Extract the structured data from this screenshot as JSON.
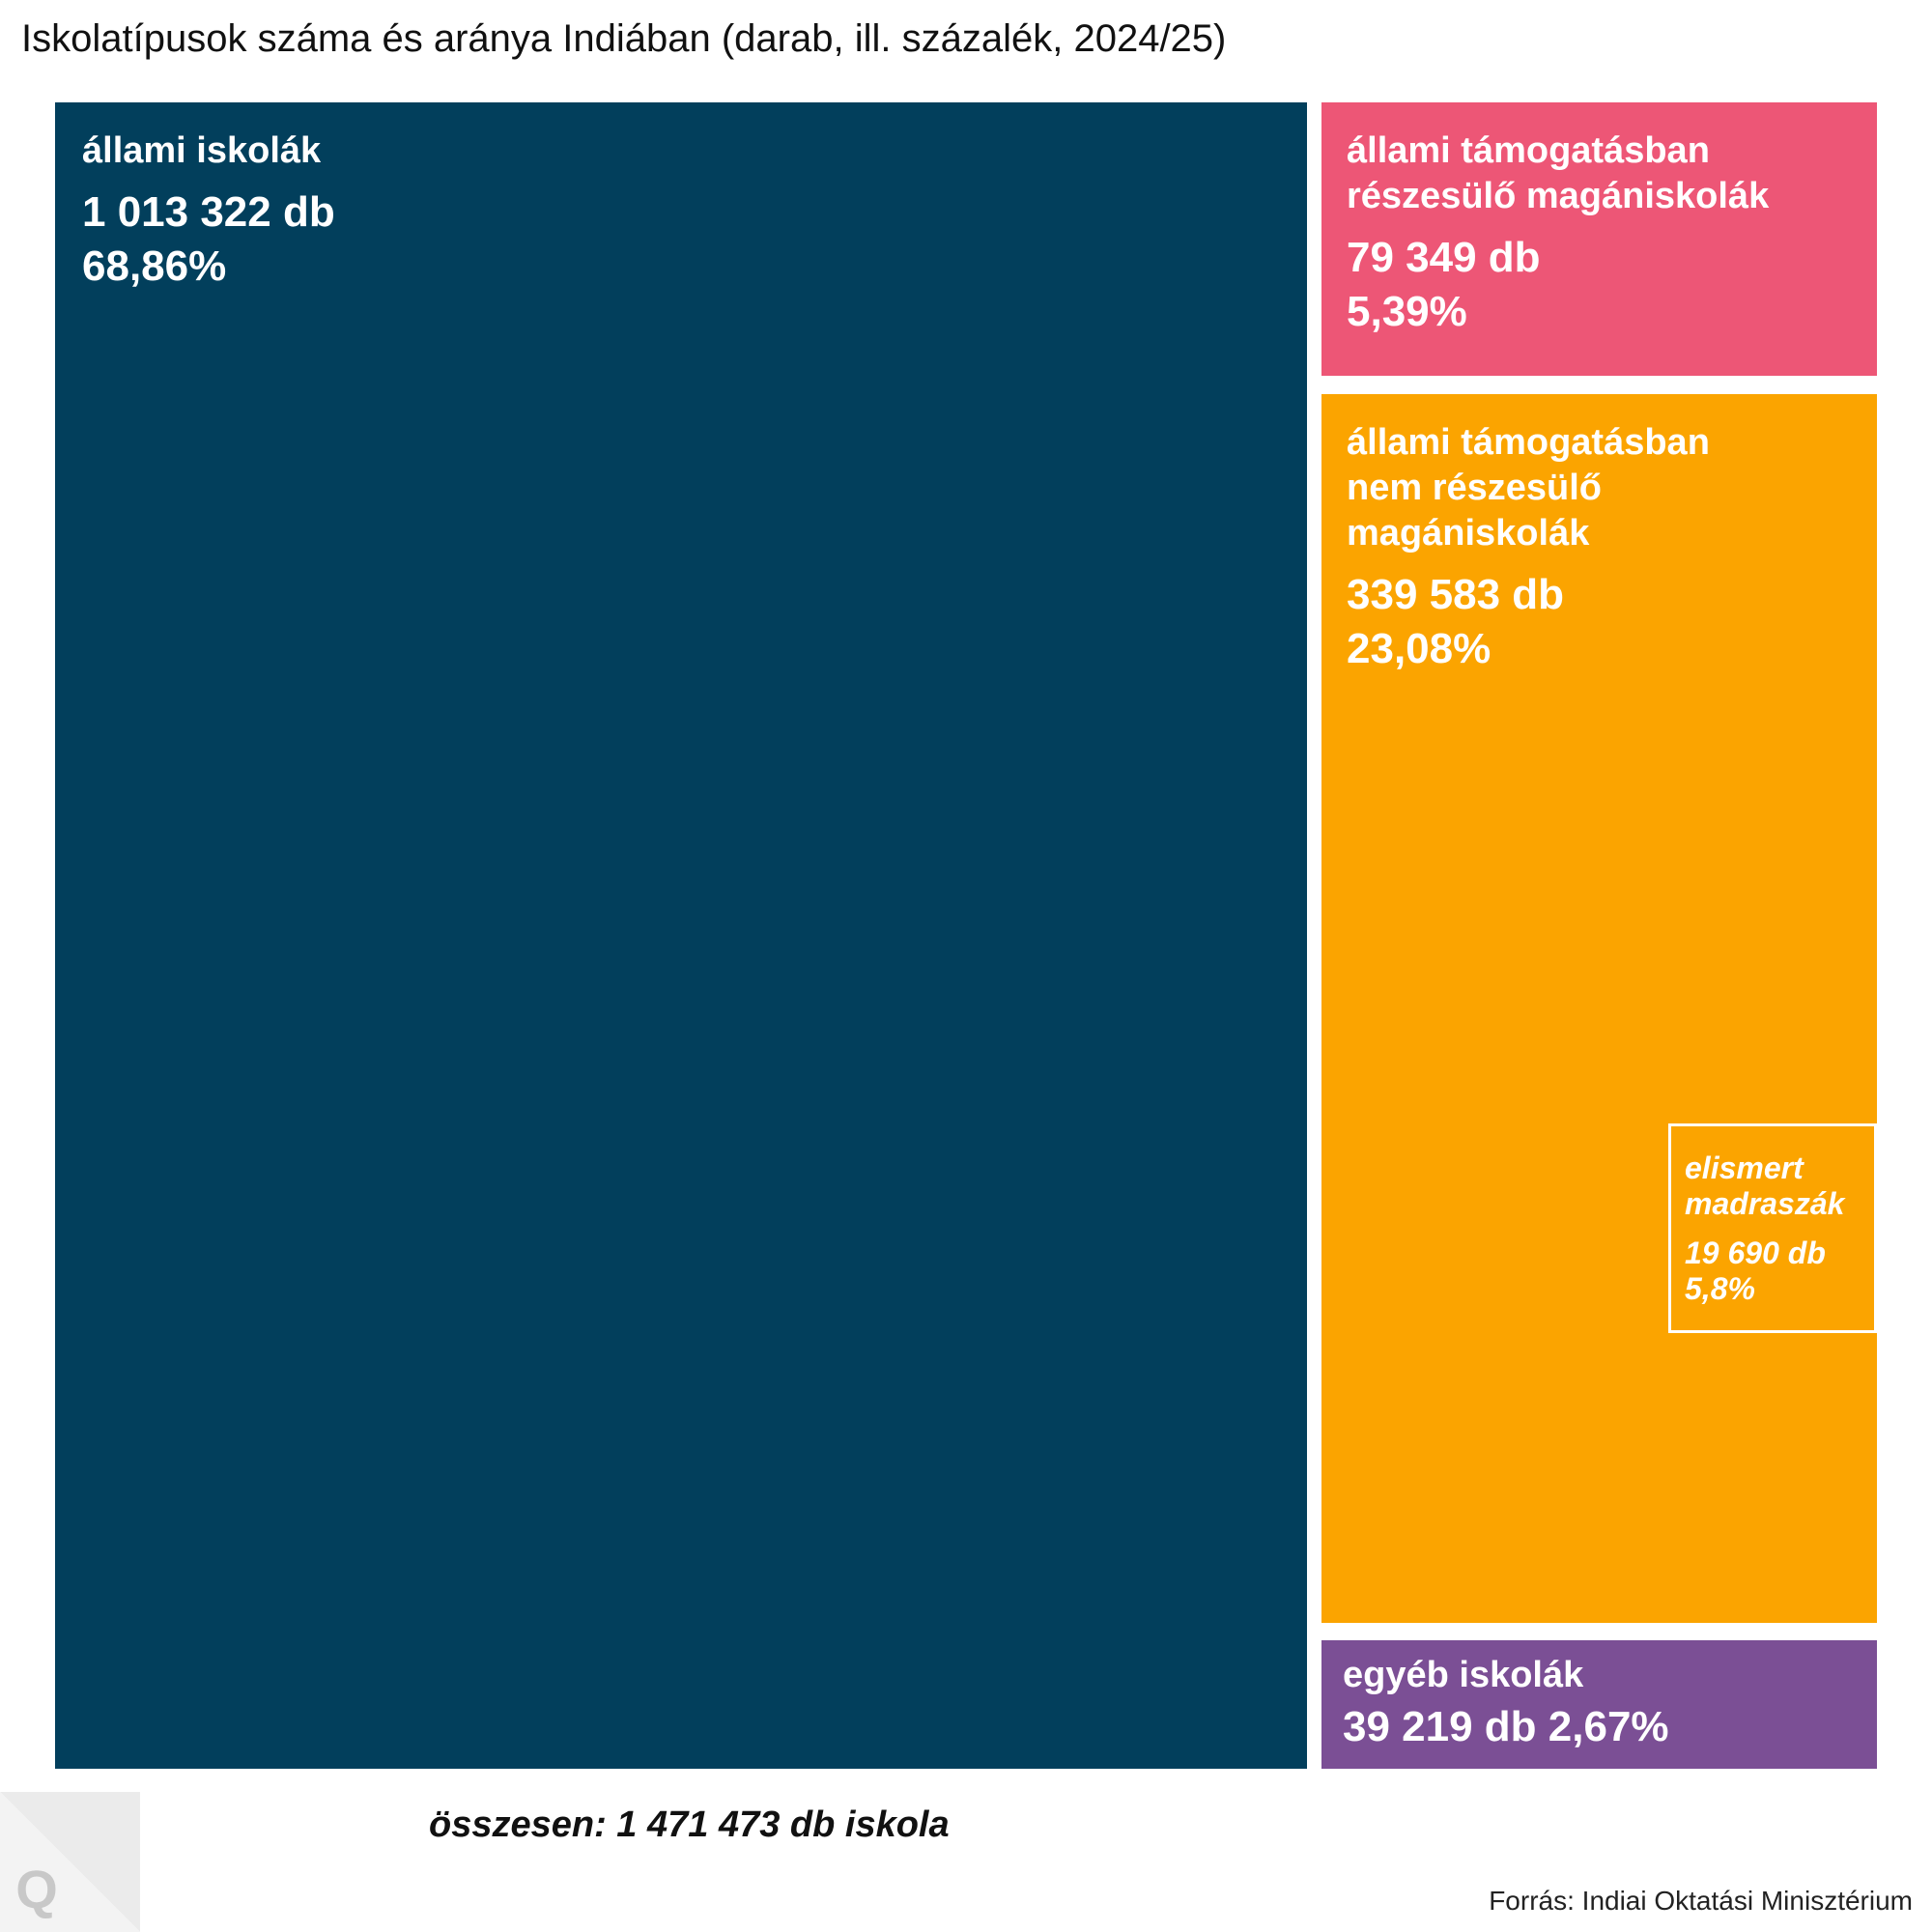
{
  "title": "Iskolatípusok száma és aránya Indiában (darab, ill. százalék, 2024/25)",
  "chart_data": {
    "type": "treemap",
    "title": "Iskolatípusok száma és aránya Indiában (darab, ill. százalék, 2024/25)",
    "unit": "db",
    "items": [
      {
        "label": "állami iskolák",
        "value": 1013322,
        "value_text": "1 013 322 db",
        "percent": 68.86,
        "percent_text": "68,86%",
        "color": "#023f5c"
      },
      {
        "label": "állami támogatásban\nrészesülő magániskolák",
        "value": 79349,
        "value_text": "79 349 db",
        "percent": 5.39,
        "percent_text": "5,39%",
        "color": "#ed5676"
      },
      {
        "label": "állami támogatásban\nnem részesülő magániskolák",
        "value": 339583,
        "value_text": "339 583 db",
        "percent": 23.08,
        "percent_text": "23,08%",
        "color": "#fba400",
        "sub": {
          "label": "elismert\nmadraszák",
          "value": 19690,
          "value_text": "19 690 db",
          "percent": 5.8,
          "percent_text": "5,8%"
        }
      },
      {
        "label": "egyéb iskolák",
        "value": 39219,
        "value_text": "39 219 db",
        "percent": 2.67,
        "percent_text": "2,67%",
        "value_percent_text": "39 219 db 2,67%",
        "color": "#7b4f95"
      }
    ],
    "total": 1471473
  },
  "total_text": "összesen: 1 471 473 db iskola",
  "source": "Forrás: Indiai Oktatási Minisztérium",
  "logo_letter": "Q"
}
